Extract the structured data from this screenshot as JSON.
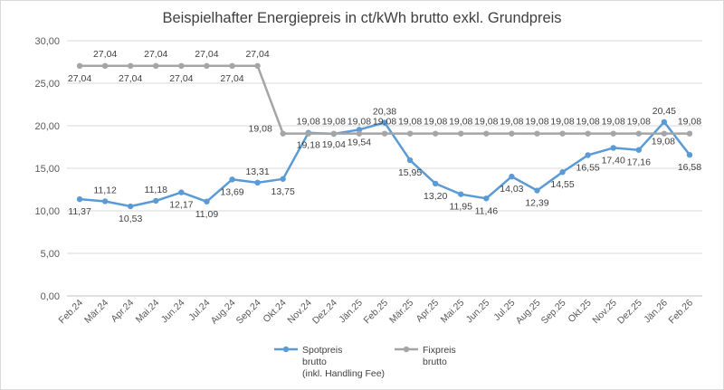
{
  "chart_data": {
    "type": "line",
    "title": "Beispielhafter Energiepreis in ct/kWh brutto exkl. Grundpreis",
    "xlabel": "",
    "ylabel": "",
    "ylim": [
      0,
      30
    ],
    "yticks": [
      "0,00",
      "5,00",
      "10,00",
      "15,00",
      "20,00",
      "25,00",
      "30,00"
    ],
    "grid": true,
    "legend_position": "bottom",
    "categories": [
      "Feb.24",
      "Mär.24",
      "Apr.24",
      "Mai.24",
      "Jun.24",
      "Jul.24",
      "Aug.24",
      "Sep.24",
      "Okt.24",
      "Nov.24",
      "Dez.24",
      "Jän.25",
      "Feb.25",
      "Mär.25",
      "Apr.25",
      "Mai.25",
      "Jun.25",
      "Jul.25",
      "Aug.25",
      "Sep.25",
      "Okt.25",
      "Nov.25",
      "Dez.25",
      "Jän.26",
      "Feb.26"
    ],
    "series": [
      {
        "name": "Spotpreis brutto (inkl. Handling Fee)",
        "legend_lines": [
          "Spotpreis",
          "brutto",
          "(inkl. Handling Fee)"
        ],
        "color": "#5b9bd5",
        "values": [
          11.37,
          11.12,
          10.53,
          11.18,
          12.17,
          11.09,
          13.69,
          13.31,
          13.75,
          19.18,
          19.04,
          19.54,
          20.38,
          15.95,
          13.2,
          11.95,
          11.46,
          14.03,
          12.39,
          14.55,
          16.55,
          17.4,
          17.16,
          20.45,
          16.58
        ],
        "labels": [
          "11,37",
          "11,12",
          "10,53",
          "11,18",
          "12,17",
          "11,09",
          "13,69",
          "13,31",
          "13,75",
          "19,18",
          "19,04",
          "19,54",
          "20,38",
          "15,95",
          "13,20",
          "11,95",
          "11,46",
          "14,03",
          "12,39",
          "14,55",
          "16,55",
          "17,40",
          "17,16",
          "20,45",
          "16,58"
        ]
      },
      {
        "name": "Fixpreis brutto",
        "legend_lines": [
          "Fixpreis",
          "brutto"
        ],
        "color": "#a5a5a5",
        "values": [
          27.04,
          27.04,
          27.04,
          27.04,
          27.04,
          27.04,
          27.04,
          27.04,
          19.08,
          19.08,
          19.08,
          19.08,
          19.08,
          19.08,
          19.08,
          19.08,
          19.08,
          19.08,
          19.08,
          19.08,
          19.08,
          19.08,
          19.08,
          19.08,
          19.08
        ],
        "labels": [
          "27,04",
          "27,04",
          "27,04",
          "27,04",
          "27,04",
          "27,04",
          "27,04",
          "27,04",
          "19,08",
          "19,08",
          "19,08",
          "19,08",
          "19,08",
          "19,08",
          "19,08",
          "19,08",
          "19,08",
          "19,08",
          "19,08",
          "19,08",
          "19,08",
          "19,08",
          "19,08",
          "19,08",
          "19,08"
        ]
      }
    ]
  }
}
